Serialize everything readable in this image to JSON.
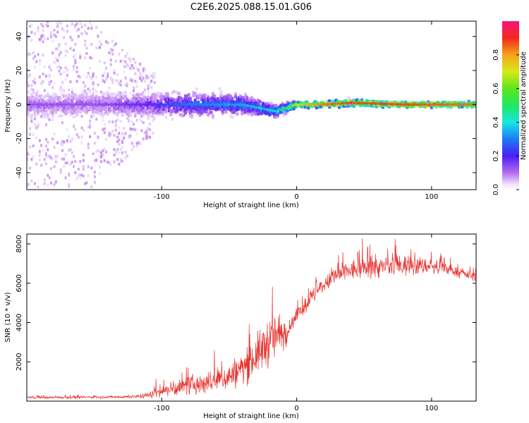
{
  "figure": {
    "title": "C2E6.2025.088.15.01.G06"
  },
  "chart_data": [
    {
      "type": "heatmap",
      "title": "C2E6.2025.088.15.01.G06",
      "xlabel": "Height of straight line (km)",
      "ylabel": "Frequency (Hz)",
      "xlim": [
        -200,
        133
      ],
      "ylim": [
        -50,
        49
      ],
      "xticks": [
        -100,
        0,
        100
      ],
      "yticks": [
        -40,
        -20,
        0,
        20,
        40
      ],
      "colorbar": {
        "label": "Normalized spectral amplitude",
        "range": [
          0,
          1
        ],
        "ticks": [
          0.0,
          0.2,
          0.4,
          0.6,
          0.8
        ],
        "tick_labels": [
          "0.0",
          "0.2",
          "0.4",
          "0.6",
          "0.8"
        ],
        "colormap": "rainbow (white-violet-blue-cyan-green-yellow-red-magenta)"
      },
      "description_points": [
        {
          "x": -190,
          "freq_center": 0,
          "freq_spread": 49,
          "amplitude": 0.15
        },
        {
          "x": -150,
          "freq_center": 0,
          "freq_spread": 49,
          "amplitude": 0.15
        },
        {
          "x": -110,
          "freq_center": 0,
          "freq_spread": 20,
          "amplitude": 0.2
        },
        {
          "x": -80,
          "freq_center": 0,
          "freq_spread": 10,
          "amplitude": 0.3
        },
        {
          "x": -40,
          "freq_center": 0,
          "freq_spread": 8,
          "amplitude": 0.35
        },
        {
          "x": -15,
          "freq_center": -4,
          "freq_spread": 5,
          "amplitude": 0.4
        },
        {
          "x": 0,
          "freq_center": 0,
          "freq_spread": 3,
          "amplitude": 0.7
        },
        {
          "x": 20,
          "freq_center": 0,
          "freq_spread": 2,
          "amplitude": 0.85
        },
        {
          "x": 40,
          "freq_center": 1,
          "freq_spread": 3,
          "amplitude": 0.9
        },
        {
          "x": 80,
          "freq_center": 0,
          "freq_spread": 2,
          "amplitude": 0.9
        },
        {
          "x": 130,
          "freq_center": 0,
          "freq_spread": 2,
          "amplitude": 0.85
        }
      ]
    },
    {
      "type": "line",
      "xlabel": "Height of straight line (km)",
      "ylabel": "SNR (10 * v/v)",
      "xlim": [
        -200,
        133
      ],
      "ylim": [
        0,
        8500
      ],
      "xticks": [
        -100,
        0,
        100
      ],
      "yticks": [
        2000,
        4000,
        6000,
        8000
      ],
      "series": [
        {
          "color": "#e8332e",
          "x": [
            -200,
            -180,
            -160,
            -140,
            -120,
            -110,
            -100,
            -90,
            -80,
            -70,
            -60,
            -50,
            -40,
            -30,
            -25,
            -20,
            -15,
            -10,
            -7,
            -5,
            0,
            10,
            20,
            30,
            40,
            50,
            60,
            70,
            80,
            90,
            100,
            110,
            120,
            133
          ],
          "mean": [
            180,
            190,
            200,
            210,
            230,
            300,
            520,
            650,
            800,
            900,
            1050,
            1250,
            1700,
            2300,
            2700,
            3100,
            3300,
            3400,
            3500,
            3800,
            4300,
            5200,
            5900,
            6400,
            6650,
            6750,
            6800,
            6850,
            6900,
            6900,
            6850,
            6750,
            6550,
            6300
          ],
          "noise": [
            80,
            80,
            80,
            80,
            100,
            200,
            400,
            500,
            600,
            700,
            800,
            900,
            1100,
            1300,
            1500,
            1600,
            1600,
            1500,
            600,
            400,
            500,
            600,
            500,
            600,
            700,
            700,
            700,
            700,
            700,
            600,
            500,
            400,
            300,
            250
          ]
        }
      ]
    }
  ]
}
